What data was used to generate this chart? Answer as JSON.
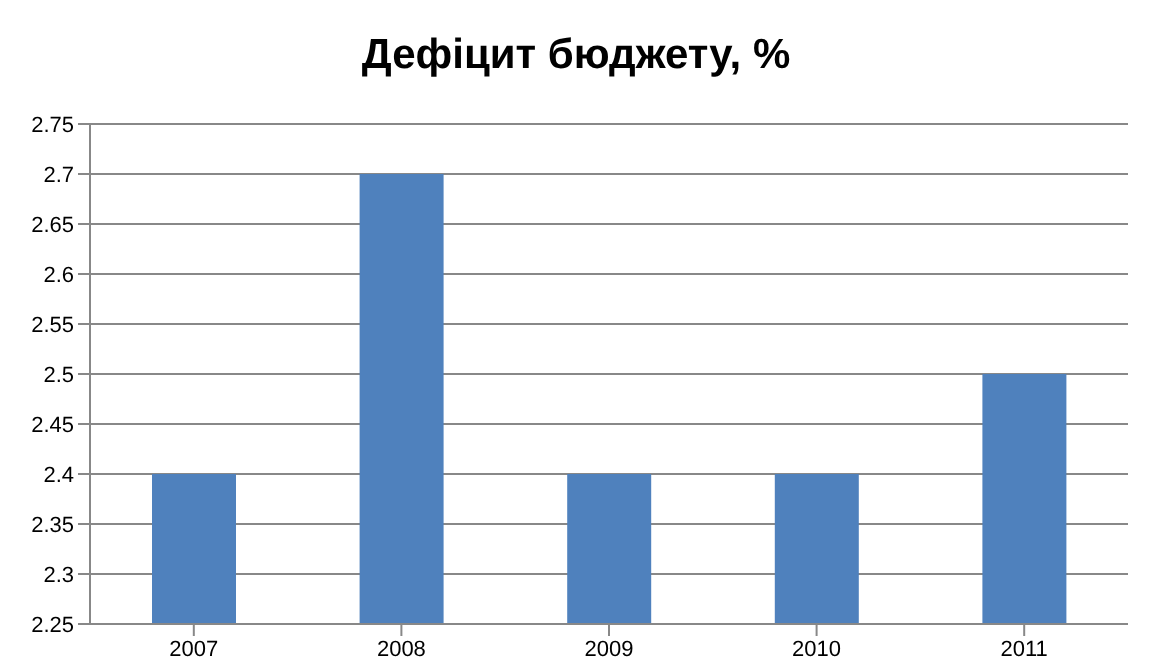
{
  "chart_data": {
    "type": "bar",
    "title": "Дефіцит бюджету, %",
    "categories": [
      "2007",
      "2008",
      "2009",
      "2010",
      "2011"
    ],
    "values": [
      2.4,
      2.7,
      2.4,
      2.4,
      2.5
    ],
    "color": "#4f81bd",
    "ylim": [
      2.25,
      2.75
    ],
    "yticks": [
      2.25,
      2.3,
      2.35,
      2.4,
      2.45,
      2.5,
      2.55,
      2.6,
      2.65,
      2.7,
      2.75
    ],
    "grid": "y"
  }
}
